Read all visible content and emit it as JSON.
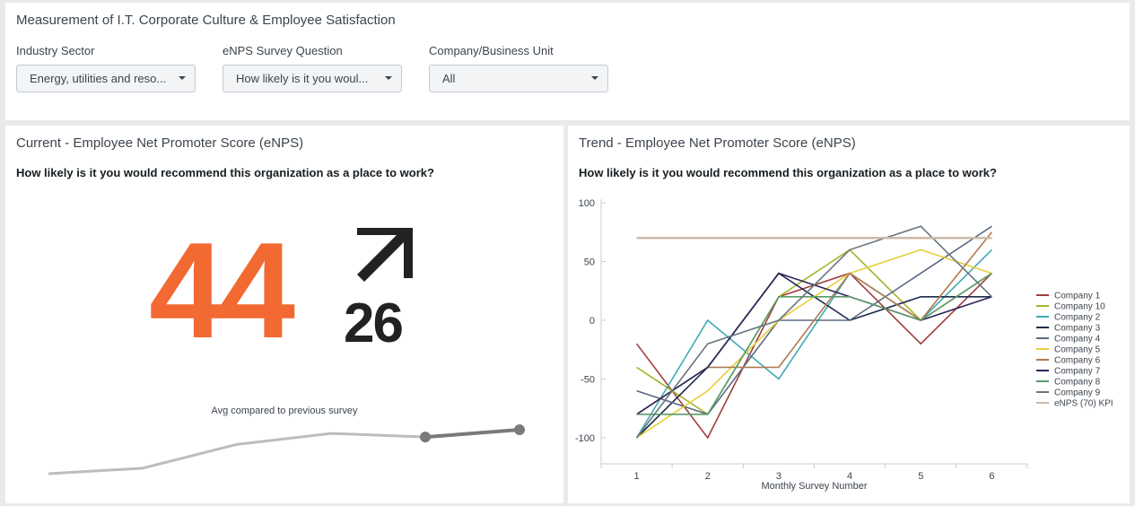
{
  "header": {
    "title": "Measurement of I.T. Corporate Culture & Employee Satisfaction"
  },
  "filters": [
    {
      "label": "Industry Sector",
      "value": "Energy, utilities and reso..."
    },
    {
      "label": "eNPS Survey Question",
      "value": "How likely is it you woul..."
    },
    {
      "label": "Company/Business Unit",
      "value": "All"
    }
  ],
  "current_panel": {
    "title": "Current - Employee Net Promoter Score (eNPS)",
    "question": "How likely is it you would recommend this organization as a place to work?",
    "value": "44",
    "delta": "26",
    "delta_direction": "up",
    "sparkline_caption": "Avg compared to previous survey",
    "sparkline_values": [
      -14,
      -11,
      2,
      8,
      6,
      10
    ]
  },
  "trend_panel": {
    "title": "Trend - Employee Net Promoter Score (eNPS)",
    "question": "How likely is it you would recommend this organization as a place to work?"
  },
  "chart_data": {
    "type": "line",
    "title": "",
    "xlabel": "Monthly Survey Number",
    "ylabel": "",
    "x": [
      1,
      2,
      3,
      4,
      5,
      6
    ],
    "ylim": [
      -100,
      100
    ],
    "yticks": [
      -100,
      -50,
      0,
      50,
      100
    ],
    "legend_position": "right",
    "series": [
      {
        "name": "Company 1",
        "color": "#a13d3d",
        "values": [
          -20,
          -100,
          20,
          40,
          -20,
          40
        ]
      },
      {
        "name": "Company 10",
        "color": "#a3b52b",
        "values": [
          -40,
          -80,
          20,
          60,
          0,
          40
        ]
      },
      {
        "name": "Company 2",
        "color": "#3fa9b5",
        "values": [
          -100,
          0,
          -50,
          40,
          0,
          60
        ]
      },
      {
        "name": "Company 3",
        "color": "#1c2b4a",
        "values": [
          -100,
          -40,
          40,
          0,
          20,
          20
        ]
      },
      {
        "name": "Company 4",
        "color": "#5b6b82",
        "values": [
          -60,
          -80,
          0,
          0,
          40,
          80
        ]
      },
      {
        "name": "Company 5",
        "color": "#e6cf3a",
        "values": [
          -100,
          -60,
          0,
          40,
          60,
          40
        ]
      },
      {
        "name": "Company 6",
        "color": "#b07b52",
        "values": [
          -80,
          -40,
          -40,
          40,
          0,
          75
        ]
      },
      {
        "name": "Company 7",
        "color": "#2b2558",
        "values": [
          -80,
          -40,
          40,
          20,
          0,
          20
        ]
      },
      {
        "name": "Company 8",
        "color": "#5b9a6b",
        "values": [
          -80,
          -80,
          20,
          20,
          0,
          40
        ]
      },
      {
        "name": "Company 9",
        "color": "#67767e",
        "values": [
          -100,
          -20,
          0,
          60,
          80,
          20
        ]
      },
      {
        "name": "eNPS (70) KPI",
        "color": "#cdb9a8",
        "values": [
          70,
          70,
          70,
          70,
          70,
          70
        ]
      }
    ]
  }
}
